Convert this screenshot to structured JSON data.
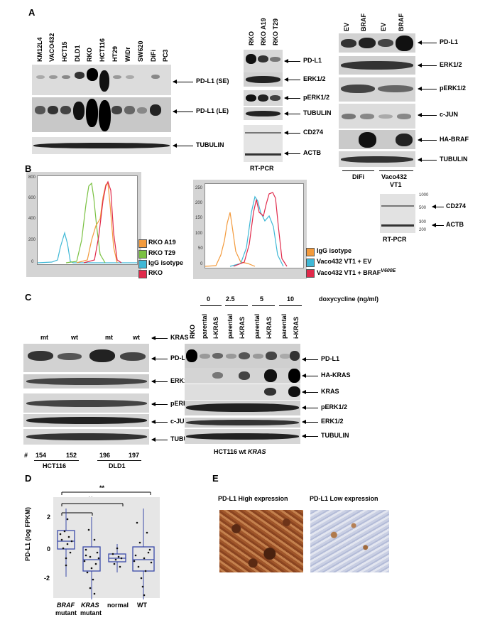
{
  "panel_labels": {
    "a": "A",
    "b": "B",
    "c": "C",
    "d": "D",
    "e": "E"
  },
  "panelA": {
    "left_lanes": [
      "KM12L4",
      "VACO432",
      "HCT15",
      "DLD1",
      "RKO",
      "HCT116",
      "HT29",
      "WiDr",
      "SW620",
      "DiFi",
      "PC3"
    ],
    "left_labels": [
      "PD-L1 (SE)",
      "PD-L1 (LE)",
      "TUBULIN"
    ],
    "mid_lanes": [
      "RKO",
      "RKO A19",
      "RKO T29"
    ],
    "mid_labels": [
      "PD-L1",
      "ERK1/2",
      "pERK1/2",
      "TUBULIN",
      "CD274",
      "ACTB"
    ],
    "mid_caption": "RT-PCR",
    "right_lanes": [
      "EV",
      "BRAF",
      "EV",
      "BRAF"
    ],
    "right_labels": [
      "PD-L1",
      "ERK1/2",
      "pERK1/2",
      "c-JUN",
      "HA-BRAF",
      "TUBULIN"
    ],
    "right_groups": [
      "DiFi",
      "Vaco432",
      "VT1"
    ]
  },
  "panelB": {
    "legend1": [
      {
        "label": "RKO A19",
        "color": "#f39a3c"
      },
      {
        "label": "RKO T29",
        "color": "#7ac142"
      },
      {
        "label": "IgG isotype",
        "color": "#3fb8d6"
      },
      {
        "label": "RKO",
        "color": "#e0294a"
      }
    ],
    "legend2": [
      {
        "label": "IgG isotype",
        "color": "#f39a3c"
      },
      {
        "label": "Vaco432 VT1 + EV",
        "color": "#3fb8d6"
      },
      {
        "label": "Vaco432 VT1 + BRAF",
        "color": "#e0294a",
        "sup": "V600E"
      }
    ],
    "ticks1": [
      "800",
      "600",
      "400",
      "200",
      "0"
    ],
    "ticks2": [
      "250",
      "200",
      "150",
      "100",
      "50",
      "0"
    ],
    "rtpcr_sizes": [
      "1000",
      "500",
      "300",
      "200"
    ],
    "rtpcr_labels": [
      "CD274",
      "ACTB"
    ],
    "rtpcr_caption": "RT-PCR"
  },
  "panelC": {
    "left_lanes": [
      "mt",
      "wt",
      "mt",
      "wt"
    ],
    "kras_label": "KRAS",
    "left_labels": [
      "PD-L1",
      "ERK1/2",
      "pERK1/2",
      "c-JUN",
      "TUBULIN"
    ],
    "clone_hash": "#",
    "clones": [
      "154",
      "152",
      "196",
      "197"
    ],
    "lines": [
      "HCT116",
      "DLD1"
    ],
    "dox_levels": [
      "0",
      "2.5",
      "5",
      "10"
    ],
    "dox_label": "doxycycline (ng/ml)",
    "right_lanes": [
      "RKO",
      "parental",
      "i-KRAS",
      "parental",
      "i-KRAS",
      "parental",
      "i-KRAS",
      "parental",
      "i-KRAS"
    ],
    "right_labels": [
      "PD-L1",
      "HA-KRAS",
      "KRAS",
      "pERK1/2",
      "ERK1/2",
      "TUBULIN"
    ],
    "right_caption": "HCT116 wt",
    "right_caption_it": "KRAS"
  },
  "panelD": {
    "ylabel": "PD-L1 (log FPKM)",
    "yticks": [
      "2",
      "0",
      "-2"
    ],
    "sig": [
      "**",
      "**",
      "**"
    ],
    "groups": [
      {
        "l1": "BRAF",
        "l2": "mutant"
      },
      {
        "l1": "KRAS",
        "l2": "mutant"
      },
      {
        "l1": "normal",
        "l2": ""
      },
      {
        "l1": "WT",
        "l2": ""
      }
    ]
  },
  "panelE": {
    "high": "PD-L1 High expression",
    "low": "PD-L1 Low expression"
  }
}
